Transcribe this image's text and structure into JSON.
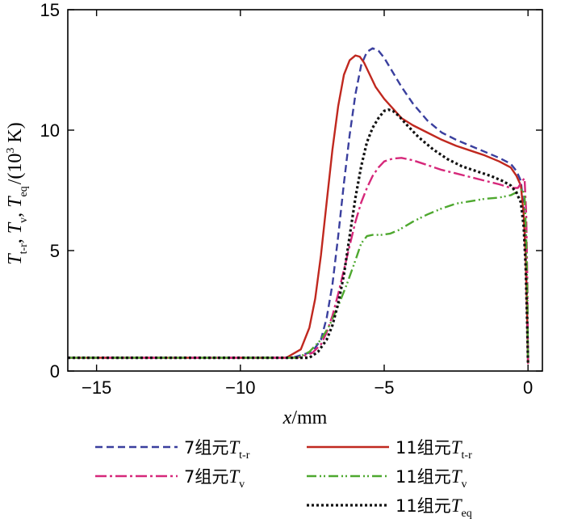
{
  "chart_data": {
    "type": "line",
    "title": "",
    "xlabel": {
      "var": "x",
      "unit": "/mm"
    },
    "ylabel": {
      "text": "T_t-r , T_v , T_eq /(10^3 K)",
      "parts": [
        {
          "sym": "T",
          "sub": "t-r",
          "sep": ", "
        },
        {
          "sym": "T",
          "sub": "v",
          "sep": ", "
        },
        {
          "sym": "T",
          "sub": "eq",
          "sep": ""
        }
      ],
      "unit_prefix": "/(10",
      "unit_exp": "3",
      "unit_suffix": " K)"
    },
    "xlim": [
      -16,
      0.5
    ],
    "ylim": [
      0,
      15
    ],
    "xticks": [
      -15,
      -10,
      -5,
      0
    ],
    "xtick_labels": [
      "−15",
      "−10",
      "−5",
      "0"
    ],
    "yticks": [
      0,
      5,
      10,
      15
    ],
    "ytick_labels": [
      "0",
      "5",
      "10",
      "15"
    ],
    "grid": false,
    "legend_placement": "bottom",
    "series": [
      {
        "name": "7组元T_t-r",
        "label_prefix": "7组元",
        "sym": "T",
        "sub": "t-r",
        "color": "#3a3f9e",
        "dash": "9,5",
        "x": [
          -16,
          -8.2,
          -7.5,
          -7.2,
          -7.0,
          -6.8,
          -6.6,
          -6.4,
          -6.2,
          -6.0,
          -5.8,
          -5.6,
          -5.4,
          -5.2,
          -5.0,
          -4.7,
          -4.4,
          -4.0,
          -3.5,
          -3.0,
          -2.5,
          -2.0,
          -1.5,
          -1.0,
          -0.6,
          -0.4,
          -0.25,
          -0.15,
          -0.08,
          -0.03,
          0
        ],
        "y": [
          0.55,
          0.55,
          0.8,
          1.3,
          2.2,
          3.6,
          5.6,
          7.8,
          9.8,
          11.5,
          12.7,
          13.25,
          13.4,
          13.3,
          13.0,
          12.4,
          11.8,
          11.1,
          10.4,
          9.9,
          9.6,
          9.35,
          9.1,
          8.85,
          8.6,
          8.3,
          7.9,
          6.8,
          5.0,
          2.5,
          0.3
        ]
      },
      {
        "name": "11组元T_t-r",
        "label_prefix": "11组元",
        "sym": "T",
        "sub": "t-r",
        "color": "#c0281f",
        "dash": "",
        "x": [
          -16,
          -8.4,
          -7.9,
          -7.6,
          -7.4,
          -7.2,
          -7.0,
          -6.8,
          -6.6,
          -6.4,
          -6.2,
          -6.0,
          -5.85,
          -5.7,
          -5.5,
          -5.3,
          -5.0,
          -4.7,
          -4.4,
          -4.0,
          -3.5,
          -3.0,
          -2.5,
          -2.0,
          -1.5,
          -1.0,
          -0.6,
          -0.4,
          -0.25,
          -0.15,
          -0.08,
          -0.03,
          0
        ],
        "y": [
          0.55,
          0.55,
          0.9,
          1.8,
          3.0,
          4.8,
          7.0,
          9.2,
          11.0,
          12.3,
          12.9,
          13.1,
          13.05,
          12.8,
          12.3,
          11.8,
          11.3,
          10.9,
          10.5,
          10.2,
          9.9,
          9.6,
          9.35,
          9.15,
          8.95,
          8.7,
          8.45,
          8.1,
          7.7,
          6.5,
          4.8,
          2.3,
          0.3
        ]
      },
      {
        "name": "7组元T_v",
        "label_prefix": "7组元",
        "sym": "T",
        "sub": "v",
        "color": "#d6287a",
        "dash": "14,4,3,4",
        "x": [
          -16,
          -8.0,
          -7.5,
          -7.2,
          -7.0,
          -6.8,
          -6.6,
          -6.4,
          -6.2,
          -6.0,
          -5.8,
          -5.6,
          -5.4,
          -5.2,
          -5.0,
          -4.7,
          -4.4,
          -4.0,
          -3.5,
          -3.0,
          -2.5,
          -2.0,
          -1.5,
          -1.0,
          -0.6,
          -0.35,
          -0.2,
          -0.12,
          -0.06,
          -0.02,
          0
        ],
        "y": [
          0.55,
          0.55,
          0.75,
          1.1,
          1.6,
          2.3,
          3.2,
          4.2,
          5.2,
          6.2,
          7.0,
          7.6,
          8.1,
          8.45,
          8.7,
          8.82,
          8.85,
          8.75,
          8.55,
          8.35,
          8.2,
          8.05,
          7.9,
          7.75,
          7.6,
          7.6,
          7.9,
          8.0,
          6.5,
          3.5,
          0.3
        ]
      },
      {
        "name": "11组元T_v",
        "label_prefix": "11组元",
        "sym": "T",
        "sub": "v",
        "color": "#4ea82f",
        "dash": "12,4,2,3,2,4",
        "x": [
          -16,
          -8.0,
          -7.6,
          -7.2,
          -6.9,
          -6.6,
          -6.3,
          -6.0,
          -5.8,
          -5.6,
          -5.4,
          -5.1,
          -4.8,
          -4.5,
          -4.0,
          -3.5,
          -3.0,
          -2.5,
          -2.0,
          -1.5,
          -1.0,
          -0.6,
          -0.35,
          -0.2,
          -0.12,
          -0.06,
          -0.02,
          0
        ],
        "y": [
          0.55,
          0.55,
          0.8,
          1.3,
          1.9,
          2.7,
          3.6,
          4.6,
          5.3,
          5.6,
          5.65,
          5.65,
          5.7,
          5.85,
          6.2,
          6.5,
          6.75,
          6.95,
          7.05,
          7.15,
          7.2,
          7.3,
          7.45,
          7.55,
          7.3,
          5.5,
          3.0,
          0.3
        ]
      },
      {
        "name": "11组元T_eq",
        "label_prefix": "11组元",
        "sym": "T",
        "sub": "eq",
        "color": "#111111",
        "dash": "3,3",
        "x": [
          -16,
          -7.6,
          -7.3,
          -7.0,
          -6.8,
          -6.6,
          -6.4,
          -6.2,
          -6.0,
          -5.8,
          -5.6,
          -5.4,
          -5.2,
          -5.0,
          -4.85,
          -4.7,
          -4.5,
          -4.2,
          -3.8,
          -3.3,
          -2.8,
          -2.3,
          -1.8,
          -1.3,
          -0.9,
          -0.6,
          -0.4,
          -0.25,
          -0.15,
          -0.08,
          -0.03,
          0
        ],
        "y": [
          0.55,
          0.55,
          0.8,
          1.3,
          1.9,
          2.8,
          4.0,
          5.6,
          7.2,
          8.5,
          9.5,
          10.1,
          10.5,
          10.8,
          10.85,
          10.8,
          10.6,
          10.2,
          9.7,
          9.2,
          8.8,
          8.5,
          8.3,
          8.1,
          7.9,
          7.7,
          7.4,
          7.0,
          6.0,
          4.3,
          2.0,
          0.3
        ]
      }
    ]
  }
}
